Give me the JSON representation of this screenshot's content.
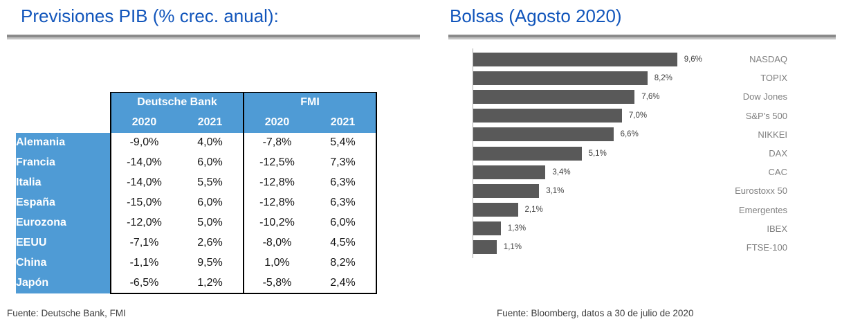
{
  "colors": {
    "title_blue": "#1155BB",
    "rule_gray": "#8a8a8a",
    "table_header_blue": "#4F9BD5",
    "bar_gray": "#595959",
    "category_label_gray": "#7f7f7f"
  },
  "left_panel": {
    "title": "Previsiones PIB (% crec. anual):",
    "source": "Fuente: Deutsche Bank, FMI",
    "table": {
      "group_headers": [
        "Deutsche Bank",
        "FMI"
      ],
      "year_headers": [
        "2020",
        "2021",
        "2020",
        "2021"
      ],
      "rows": [
        {
          "label": "Alemania",
          "values": [
            "-9,0%",
            "4,0%",
            "-7,8%",
            "5,4%"
          ]
        },
        {
          "label": "Francia",
          "values": [
            "-14,0%",
            "6,0%",
            "-12,5%",
            "7,3%"
          ]
        },
        {
          "label": "Italia",
          "values": [
            "-14,0%",
            "5,5%",
            "-12,8%",
            "6,3%"
          ]
        },
        {
          "label": "España",
          "values": [
            "-15,0%",
            "6,0%",
            "-12,8%",
            "6,3%"
          ]
        },
        {
          "label": "Eurozona",
          "values": [
            "-12,0%",
            "5,0%",
            "-10,2%",
            "6,0%"
          ]
        },
        {
          "label": "EEUU",
          "values": [
            "-7,1%",
            "2,6%",
            "-8,0%",
            "4,5%"
          ]
        },
        {
          "label": "China",
          "values": [
            "-1,1%",
            "9,5%",
            "1,0%",
            "8,2%"
          ]
        },
        {
          "label": "Japón",
          "values": [
            "-6,5%",
            "1,2%",
            "-5,8%",
            "2,4%"
          ]
        }
      ]
    }
  },
  "right_panel": {
    "title": "Bolsas (Agosto 2020)",
    "source": "Fuente: Bloomberg, datos a 30 de julio de 2020"
  },
  "chart_data": [
    {
      "type": "table",
      "title": "Previsiones PIB (% crec. anual)",
      "column_groups": [
        "Deutsche Bank",
        "FMI"
      ],
      "columns": [
        "Deutsche Bank 2020",
        "Deutsche Bank 2021",
        "FMI 2020",
        "FMI 2021"
      ],
      "row_labels": [
        "Alemania",
        "Francia",
        "Italia",
        "España",
        "Eurozona",
        "EEUU",
        "China",
        "Japón"
      ],
      "values_pct": [
        [
          -9.0,
          4.0,
          -7.8,
          5.4
        ],
        [
          -14.0,
          6.0,
          -12.5,
          7.3
        ],
        [
          -14.0,
          5.5,
          -12.8,
          6.3
        ],
        [
          -15.0,
          6.0,
          -12.8,
          6.3
        ],
        [
          -12.0,
          5.0,
          -10.2,
          6.0
        ],
        [
          -7.1,
          2.6,
          -8.0,
          4.5
        ],
        [
          -1.1,
          9.5,
          1.0,
          8.2
        ],
        [
          -6.5,
          1.2,
          -5.8,
          2.4
        ]
      ]
    },
    {
      "type": "bar",
      "orientation": "horizontal",
      "title": "Bolsas (Agosto 2020)",
      "categories": [
        "NASDAQ",
        "TOPIX",
        "Dow Jones",
        "S&P's 500",
        "NIKKEI",
        "DAX",
        "CAC",
        "Eurostoxx 50",
        "Emergentes",
        "IBEX",
        "FTSE-100"
      ],
      "values": [
        9.6,
        8.2,
        7.6,
        7.0,
        6.6,
        5.1,
        3.4,
        3.1,
        2.1,
        1.3,
        1.1
      ],
      "value_labels": [
        "9,6%",
        "8,2%",
        "7,6%",
        "7,0%",
        "6,6%",
        "5,1%",
        "3,4%",
        "3,1%",
        "2,1%",
        "1,3%",
        "1,1%"
      ],
      "xlabel": "",
      "ylabel": "",
      "xlim": [
        0,
        10.5
      ],
      "grid": false,
      "legend": "none",
      "bar_color": "#595959"
    }
  ]
}
